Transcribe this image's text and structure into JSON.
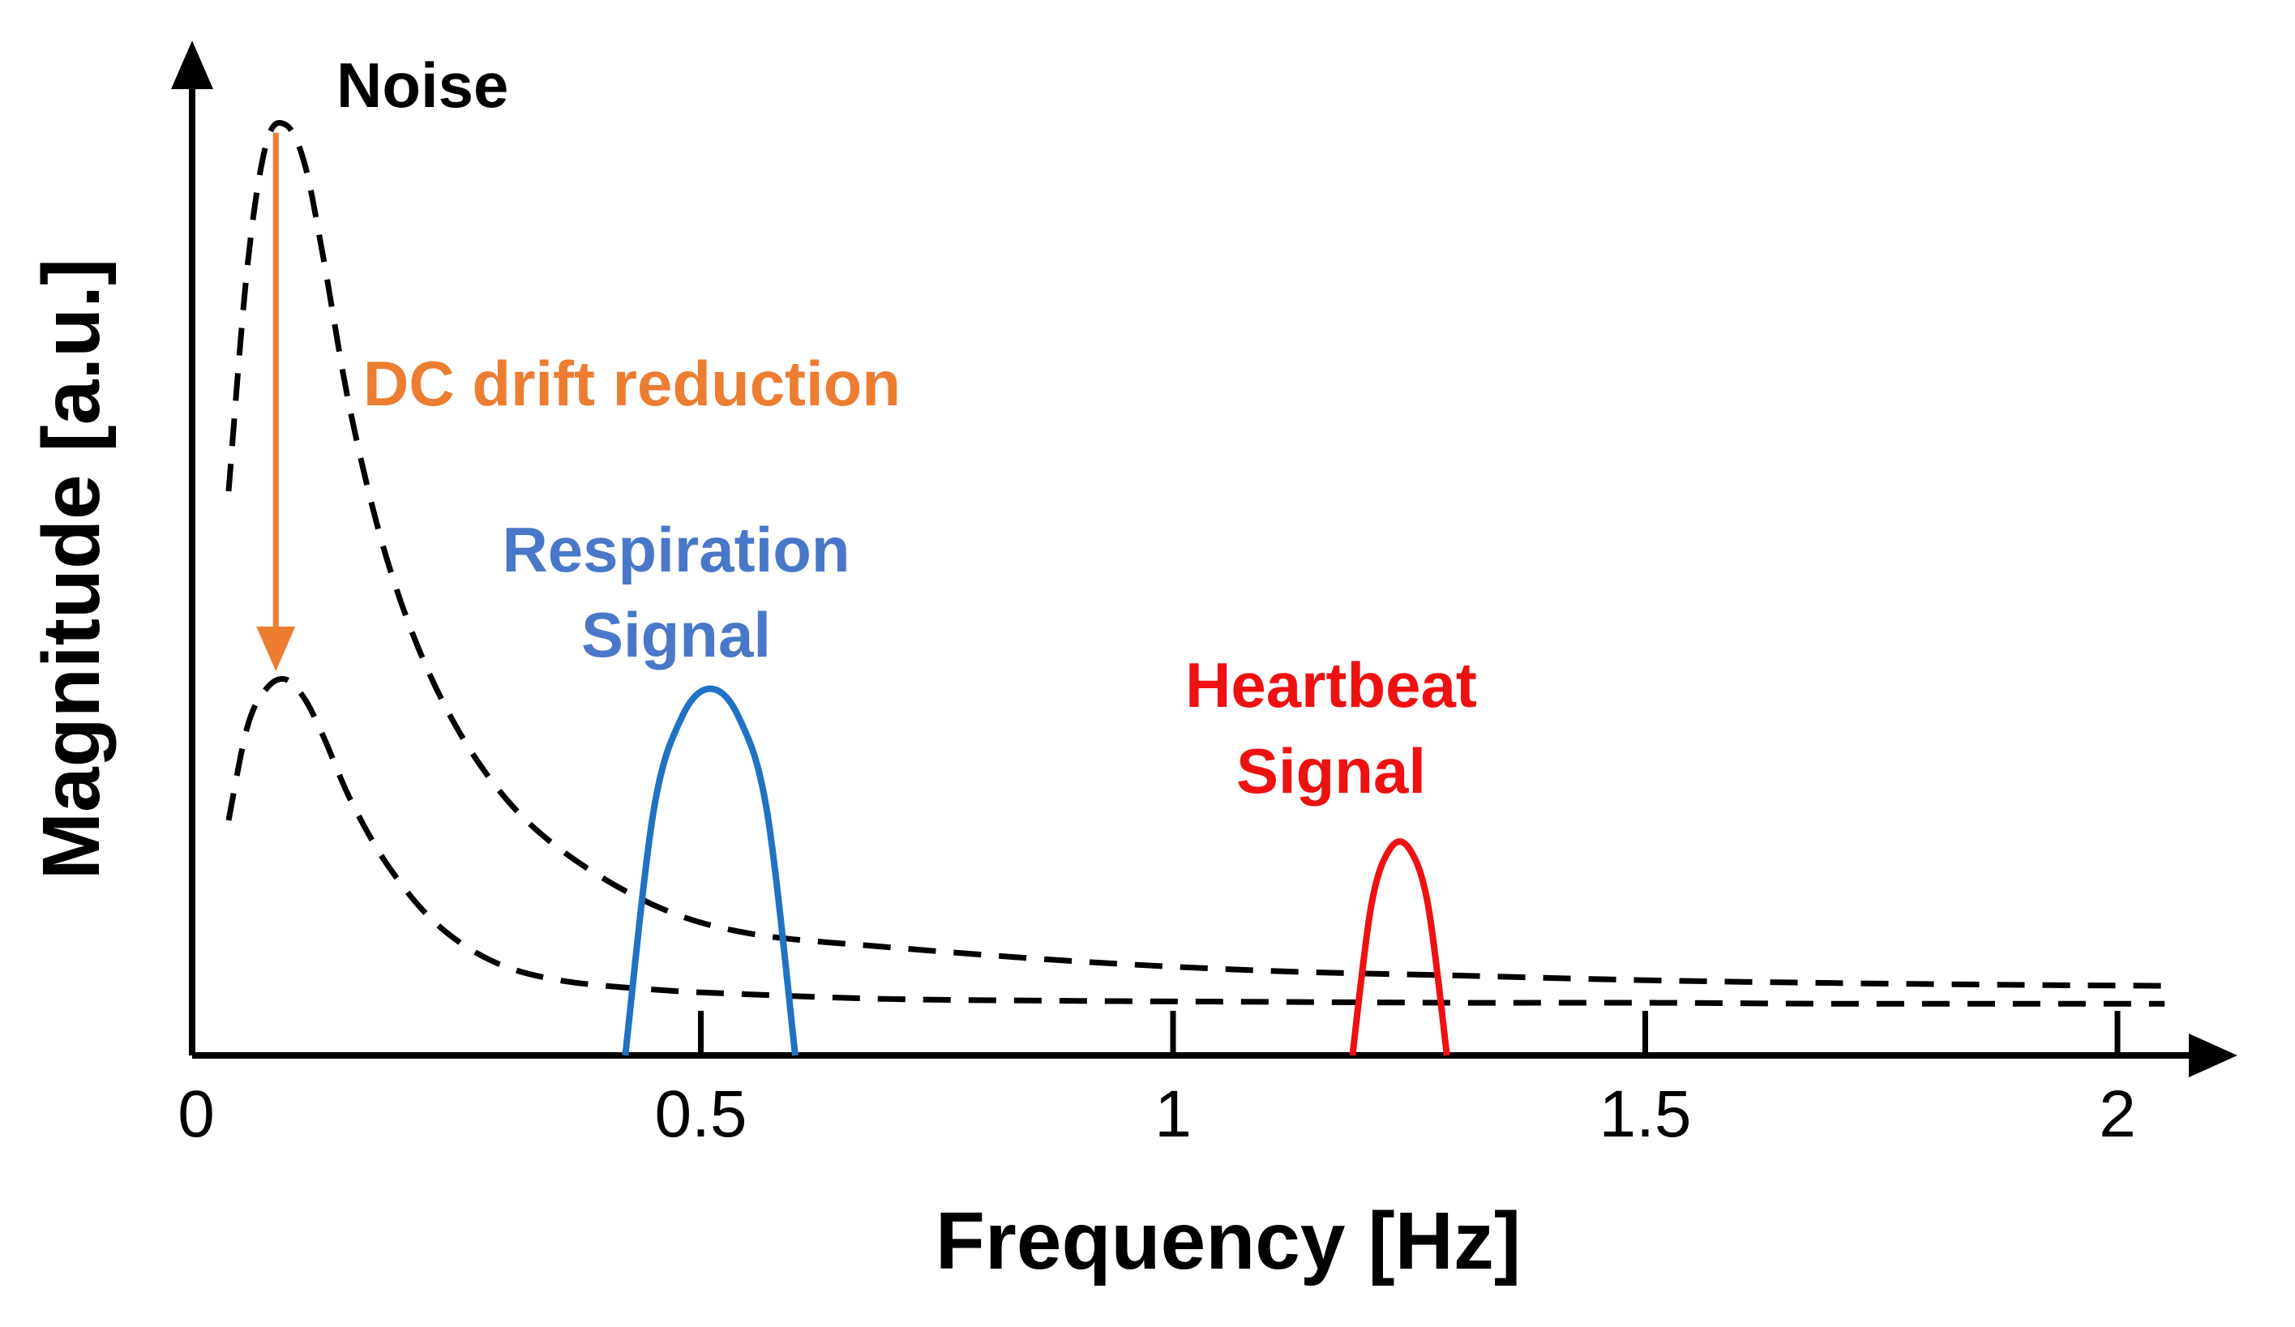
{
  "chart_data": {
    "type": "line",
    "title": "",
    "xlabel": "Frequency [Hz]",
    "ylabel": "Magnitude [a.u.]",
    "xlim": [
      -0.03,
      2.15
    ],
    "ylim": [
      0,
      1.0
    ],
    "x_ticks": [
      {
        "value": 0,
        "label": "0"
      },
      {
        "value": 0.5,
        "label": "0.5"
      },
      {
        "value": 1,
        "label": "1"
      },
      {
        "value": 1.5,
        "label": "1.5"
      },
      {
        "value": 2,
        "label": "2"
      }
    ],
    "grid": false,
    "colors": {
      "axis": "#000000",
      "noise": "#000000",
      "respiration": "#1f72c4",
      "respiration_label": "#4a78c8",
      "heartbeat": "#ee1111",
      "dc_drift": "#ed7d31"
    },
    "series": [
      {
        "name": "Noise (before DC drift reduction)",
        "style": "dashed",
        "x": [
          0.0,
          0.02,
          0.04,
          0.06,
          0.08,
          0.1,
          0.13,
          0.17,
          0.22,
          0.28,
          0.35,
          0.45,
          0.55,
          0.7,
          0.9,
          1.1,
          1.3,
          1.5,
          1.7,
          1.9,
          2.05
        ],
        "y": [
          0.6,
          0.84,
          0.97,
          0.99,
          0.95,
          0.85,
          0.68,
          0.52,
          0.39,
          0.29,
          0.22,
          0.16,
          0.13,
          0.115,
          0.1,
          0.09,
          0.085,
          0.08,
          0.077,
          0.075,
          0.074
        ]
      },
      {
        "name": "Noise (after DC drift reduction)",
        "style": "dashed",
        "x": [
          0.0,
          0.02,
          0.04,
          0.06,
          0.08,
          0.1,
          0.13,
          0.17,
          0.22,
          0.28,
          0.35,
          0.45,
          0.55,
          0.7,
          0.9,
          1.1,
          1.3,
          1.5,
          1.7,
          1.9,
          2.05
        ],
        "y": [
          0.25,
          0.35,
          0.39,
          0.4,
          0.38,
          0.34,
          0.27,
          0.2,
          0.14,
          0.1,
          0.08,
          0.07,
          0.065,
          0.06,
          0.058,
          0.057,
          0.056,
          0.056,
          0.055,
          0.055,
          0.055
        ]
      },
      {
        "name": "Respiration Signal",
        "style": "solid",
        "x": [
          0.42,
          0.45,
          0.48,
          0.51,
          0.54,
          0.57,
          0.6
        ],
        "y": [
          0.0,
          0.26,
          0.36,
          0.39,
          0.36,
          0.26,
          0.0
        ]
      },
      {
        "name": "Heartbeat Signal",
        "style": "solid",
        "x": [
          1.19,
          1.21,
          1.23,
          1.25,
          1.27,
          1.29
        ],
        "y": [
          0.0,
          0.16,
          0.22,
          0.22,
          0.16,
          0.0
        ]
      }
    ],
    "annotations": [
      {
        "id": "noise",
        "text": "Noise"
      },
      {
        "id": "dc_drift",
        "text": "DC drift reduction"
      },
      {
        "id": "respiration_line1",
        "text": "Respiration"
      },
      {
        "id": "respiration_line2",
        "text": "Signal"
      },
      {
        "id": "heartbeat_line1",
        "text": "Heartbeat"
      },
      {
        "id": "heartbeat_line2",
        "text": "Signal"
      }
    ]
  }
}
